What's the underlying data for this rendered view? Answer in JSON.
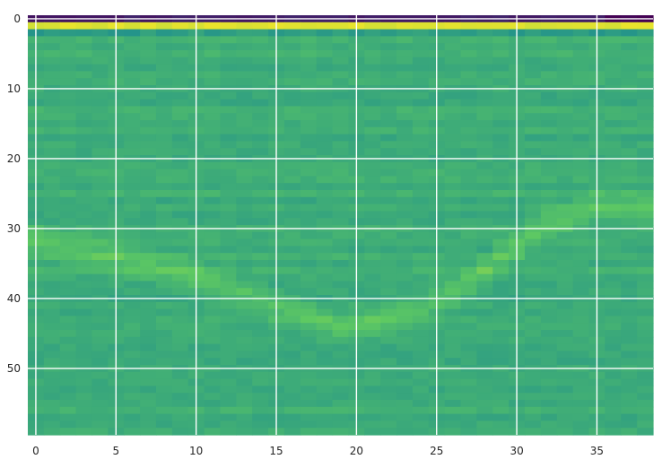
{
  "chart_data": {
    "type": "heatmap",
    "title": "",
    "xlabel": "",
    "ylabel": "",
    "n_cols": 39,
    "n_rows": 60,
    "xlim": [
      -0.5,
      38.5
    ],
    "ylim": [
      59.5,
      -0.5
    ],
    "y_inverted": true,
    "colormap": "viridis",
    "grid": true,
    "grid_color": "#ffffff",
    "x_ticks": [
      0,
      5,
      10,
      15,
      20,
      25,
      30,
      35
    ],
    "x_tick_labels": [
      "0",
      "5",
      "10",
      "15",
      "20",
      "25",
      "30",
      "35"
    ],
    "y_ticks": [
      0,
      10,
      20,
      30,
      40,
      50
    ],
    "y_tick_labels": [
      "0",
      "10",
      "20",
      "30",
      "40",
      "50"
    ],
    "value_range": [
      0,
      1
    ],
    "background_value": 0.62,
    "row0_value": 0.08,
    "row1_value": 0.97,
    "row2_value": 0.55,
    "curve_value": 0.74,
    "curve_points": [
      {
        "x": 0,
        "y": 32
      },
      {
        "x": 5,
        "y": 34
      },
      {
        "x": 10,
        "y": 37
      },
      {
        "x": 15,
        "y": 41
      },
      {
        "x": 19,
        "y": 44
      },
      {
        "x": 24,
        "y": 42
      },
      {
        "x": 28,
        "y": 36
      },
      {
        "x": 32,
        "y": 29
      },
      {
        "x": 35,
        "y": 27
      }
    ]
  }
}
